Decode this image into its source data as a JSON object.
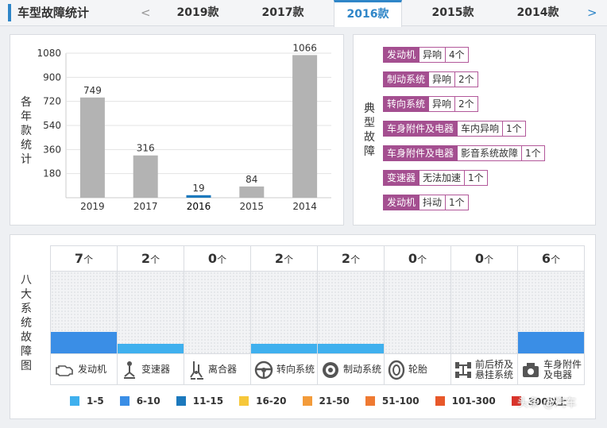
{
  "header": {
    "title": "车型故障统计",
    "prev_arrow": "<",
    "next_arrow": ">",
    "tabs": [
      {
        "label": "2019款",
        "active": false
      },
      {
        "label": "2017款",
        "active": false
      },
      {
        "label": "2016款",
        "active": true
      },
      {
        "label": "2015款",
        "active": false
      },
      {
        "label": "2014款",
        "active": false
      }
    ]
  },
  "chart": {
    "ylabel": "各年款统计",
    "chart_data": {
      "type": "bar",
      "title": "",
      "xlabel": "",
      "ylabel": "各年款统计",
      "categories": [
        "2019",
        "2017",
        "2016",
        "2015",
        "2014"
      ],
      "values": [
        749,
        316,
        19,
        84,
        1066
      ],
      "highlight": "2016",
      "yticks": [
        180,
        360,
        540,
        720,
        900,
        1080
      ],
      "ylim": [
        0,
        1080
      ],
      "grid": true
    }
  },
  "faults": {
    "label": "典型故障",
    "items": [
      {
        "part": "发动机",
        "type": "异响",
        "count": "4个"
      },
      {
        "part": "制动系统",
        "type": "异响",
        "count": "2个"
      },
      {
        "part": "转向系统",
        "type": "异响",
        "count": "2个"
      },
      {
        "part": "车身附件及电器",
        "type": "车内异响",
        "count": "1个"
      },
      {
        "part": "车身附件及电器",
        "type": "影音系统故障",
        "count": "1个"
      },
      {
        "part": "变速器",
        "type": "无法加速",
        "count": "1个"
      },
      {
        "part": "发动机",
        "type": "抖动",
        "count": "1个"
      }
    ]
  },
  "systems": {
    "label": "八大系统故障图",
    "unit": "个",
    "items": [
      {
        "name": "发动机",
        "count": "7",
        "level": 0.26,
        "color": "#3a8ee6"
      },
      {
        "name": "变速器",
        "count": "2",
        "level": 0.12,
        "color": "#3fb0ee"
      },
      {
        "name": "离合器",
        "count": "0",
        "level": 0,
        "color": "#3fb0ee"
      },
      {
        "name": "转向系统",
        "count": "2",
        "level": 0.12,
        "color": "#3fb0ee"
      },
      {
        "name": "制动系统",
        "count": "2",
        "level": 0.12,
        "color": "#3fb0ee"
      },
      {
        "name": "轮胎",
        "count": "0",
        "level": 0,
        "color": "#3fb0ee"
      },
      {
        "name": "前后桥及悬挂系统",
        "count": "0",
        "level": 0,
        "color": "#3fb0ee"
      },
      {
        "name": "车身附件及电器",
        "count": "6",
        "level": 0.26,
        "color": "#3a8ee6"
      }
    ]
  },
  "legend": [
    {
      "label": "1-5",
      "color": "#3fb0ee"
    },
    {
      "label": "6-10",
      "color": "#3a8ee6"
    },
    {
      "label": "11-15",
      "color": "#1c79bd"
    },
    {
      "label": "16-20",
      "color": "#f6c73a"
    },
    {
      "label": "21-50",
      "color": "#f39b3a"
    },
    {
      "label": "51-100",
      "color": "#ef7a32"
    },
    {
      "label": "101-300",
      "color": "#e8582a"
    },
    {
      "label": "300以上",
      "color": "#d9342b"
    }
  ],
  "watermark": "头条 @汽车"
}
